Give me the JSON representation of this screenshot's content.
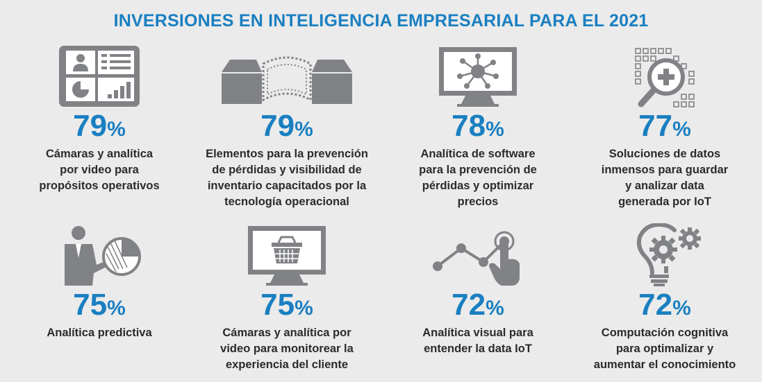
{
  "title": "INVERSIONES EN INTELIGENCIA EMPRESARIAL PARA EL 2021",
  "colors": {
    "accent": "#1a7fc1",
    "icon": "#808285",
    "text": "#2b2b2b",
    "background": "#ebebeb"
  },
  "items": [
    {
      "icon": "tablet-dashboard-icon",
      "percent": "79",
      "desc": [
        "Cámaras y analítica",
        "por video para",
        "propósitos operativos"
      ]
    },
    {
      "icon": "conveyor-boxes-icon",
      "percent": "79",
      "desc": [
        "Elementos para la prevención",
        "de pérdidas y visibilidad de",
        "inventario capacitados por la",
        "tecnología operacional"
      ]
    },
    {
      "icon": "monitor-network-icon",
      "percent": "78",
      "desc": [
        "Analítica de software",
        "para la prevención de",
        "pérdidas y optimizar",
        "precios"
      ]
    },
    {
      "icon": "data-magnifier-icon",
      "percent": "77",
      "desc": [
        "Soluciones de datos",
        "inmensos para guardar",
        "y analizar data",
        "generada por IoT"
      ]
    },
    {
      "icon": "presenter-pie-icon",
      "percent": "75",
      "desc": [
        "Analítica predictiva"
      ]
    },
    {
      "icon": "monitor-basket-icon",
      "percent": "75",
      "desc": [
        "Cámaras y analítica por",
        "video para monitorear la",
        "experiencia del cliente"
      ]
    },
    {
      "icon": "touch-chart-icon",
      "percent": "72",
      "desc": [
        "Analítica visual para",
        "entender la data IoT"
      ]
    },
    {
      "icon": "bulb-gears-icon",
      "percent": "72",
      "desc": [
        "Computación cognitiva",
        "para optimalizar y",
        "aumentar el conocimiento"
      ]
    }
  ],
  "percent_symbol": "%"
}
